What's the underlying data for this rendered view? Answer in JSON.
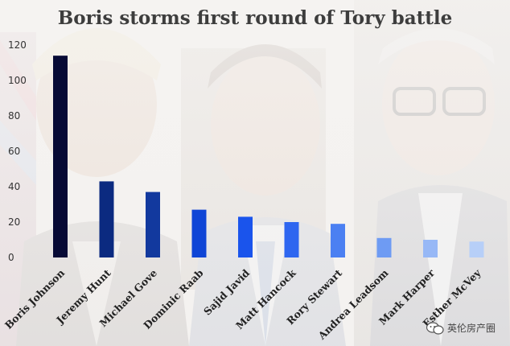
{
  "title": "Boris storms first round of Tory battle",
  "watermark": {
    "text": "英伦房产圈",
    "icon": "wechat-icon"
  },
  "colors": {
    "background": "#f1efed",
    "bars": [
      "#070a35",
      "#0b2a80",
      "#12399e",
      "#0f45d6",
      "#1a54ec",
      "#2e66f0",
      "#4b80f2",
      "#6e9bf3",
      "#97b8f6",
      "#b7cff8"
    ]
  },
  "chart_data": {
    "type": "bar",
    "title": "Boris storms first round of Tory battle",
    "xlabel": "",
    "ylabel": "",
    "categories": [
      "Boris Johnson",
      "Jeremy Hunt",
      "Michael Gove",
      "Dominic Raab",
      "Sajid Javid",
      "Matt Hancock",
      "Rory Stewart",
      "Andrea Leadsom",
      "Mark Harper",
      "Esther McVey"
    ],
    "values": [
      114,
      43,
      37,
      27,
      23,
      20,
      19,
      11,
      10,
      9
    ],
    "ylim": [
      0,
      120
    ],
    "yticks": [
      0,
      20,
      40,
      60,
      80,
      100,
      120
    ],
    "grid": false,
    "legend": "none"
  }
}
